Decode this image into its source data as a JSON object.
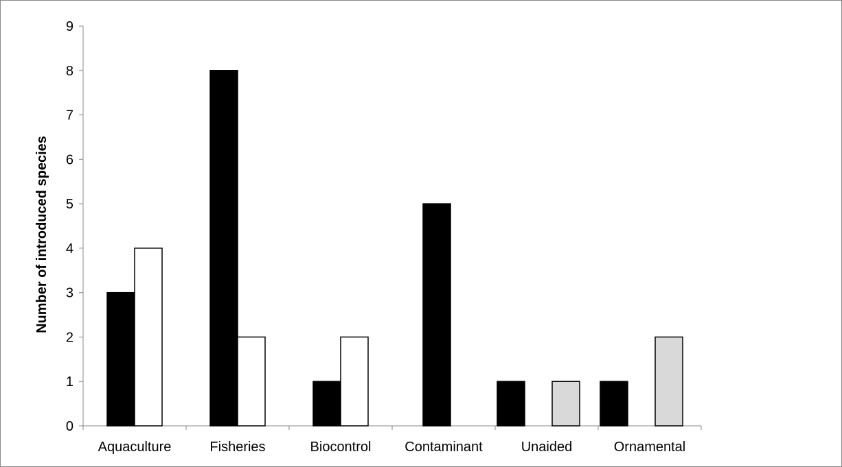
{
  "chart_data": {
    "type": "bar",
    "title": "",
    "xlabel": "",
    "ylabel": "Number of introduced species",
    "ylim": [
      0,
      9
    ],
    "yticks": [
      0,
      1,
      2,
      3,
      4,
      5,
      6,
      7,
      8,
      9
    ],
    "grid": false,
    "legend": "none",
    "categories": [
      "Aquaculture",
      "Fisheries",
      "Biocontrol",
      "Contaminant",
      "Unaided",
      "Ornamental"
    ],
    "series": [
      {
        "color": "#000000",
        "values": [
          3,
          8,
          1,
          5,
          1,
          1
        ]
      },
      {
        "color": "#ffffff",
        "values": [
          4,
          2,
          2,
          null,
          null,
          null
        ]
      },
      {
        "color": "#d9d9d9",
        "values": [
          null,
          null,
          null,
          null,
          1,
          2
        ]
      }
    ]
  }
}
